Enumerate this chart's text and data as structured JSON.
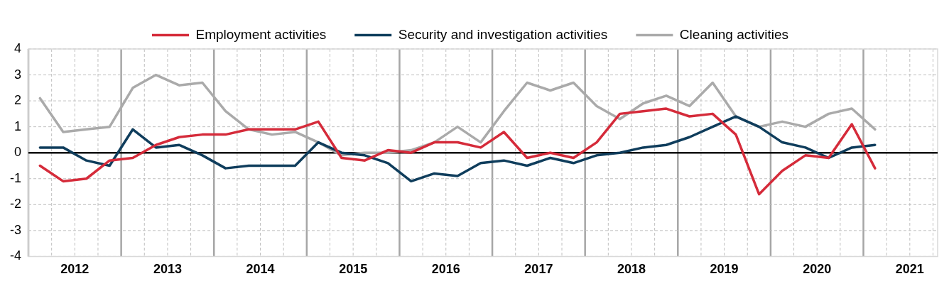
{
  "chart_data": {
    "type": "line",
    "x": [
      2012.125,
      2012.375,
      2012.625,
      2012.875,
      2013.125,
      2013.375,
      2013.625,
      2013.875,
      2014.125,
      2014.375,
      2014.625,
      2014.875,
      2015.125,
      2015.375,
      2015.625,
      2015.875,
      2016.125,
      2016.375,
      2016.625,
      2016.875,
      2017.125,
      2017.375,
      2017.625,
      2017.875,
      2018.125,
      2018.375,
      2018.625,
      2018.875,
      2019.125,
      2019.375,
      2019.625,
      2019.875,
      2020.125,
      2020.375,
      2020.625,
      2020.875,
      2021.125
    ],
    "series": [
      {
        "name": "Employment activities",
        "color": "#d52b3a",
        "values": [
          -0.5,
          -1.1,
          -1.0,
          -0.3,
          -0.2,
          0.3,
          0.6,
          0.7,
          0.7,
          0.9,
          0.9,
          0.9,
          1.2,
          -0.2,
          -0.3,
          0.1,
          0.0,
          0.4,
          0.4,
          0.2,
          0.8,
          -0.2,
          0.0,
          -0.2,
          0.4,
          1.5,
          1.6,
          1.7,
          1.4,
          1.5,
          0.7,
          -1.6,
          -0.7,
          -0.1,
          -0.2,
          1.1,
          -0.6
        ]
      },
      {
        "name": "Security and investigation activities",
        "color": "#0f3d5c",
        "values": [
          0.2,
          0.2,
          -0.3,
          -0.5,
          0.9,
          0.2,
          0.3,
          -0.1,
          -0.6,
          -0.5,
          -0.5,
          -0.5,
          0.4,
          0.0,
          -0.1,
          -0.4,
          -1.1,
          -0.8,
          -0.9,
          -0.4,
          -0.3,
          -0.5,
          -0.2,
          -0.4,
          -0.1,
          0.0,
          0.2,
          0.3,
          0.6,
          1.0,
          1.4,
          1.0,
          0.4,
          0.2,
          -0.2,
          0.2,
          0.3
        ]
      },
      {
        "name": "Cleaning activities",
        "color": "#aaaaaa",
        "values": [
          2.1,
          0.8,
          0.9,
          1.0,
          2.5,
          3.0,
          2.6,
          2.7,
          1.6,
          0.9,
          0.7,
          0.8,
          0.4,
          -0.1,
          0.0,
          0.0,
          0.1,
          0.4,
          1.0,
          0.4,
          1.6,
          2.7,
          2.4,
          2.7,
          1.8,
          1.3,
          1.9,
          2.2,
          1.8,
          2.7,
          1.4,
          1.0,
          1.2,
          1.0,
          1.5,
          1.7,
          0.9
        ]
      }
    ],
    "xlim": [
      2012,
      2021.8
    ],
    "xticks": [
      {
        "value": 2012,
        "label": null
      },
      {
        "value": 2012.25,
        "label": null
      },
      {
        "value": 2012.5,
        "label": "2012"
      },
      {
        "value": 2012.75,
        "label": null
      },
      {
        "value": 2013,
        "label": null
      },
      {
        "value": 2013.25,
        "label": null
      },
      {
        "value": 2013.5,
        "label": "2013"
      },
      {
        "value": 2013.75,
        "label": null
      },
      {
        "value": 2014,
        "label": null
      },
      {
        "value": 2014.25,
        "label": null
      },
      {
        "value": 2014.5,
        "label": "2014"
      },
      {
        "value": 2014.75,
        "label": null
      },
      {
        "value": 2015,
        "label": null
      },
      {
        "value": 2015.25,
        "label": null
      },
      {
        "value": 2015.5,
        "label": "2015"
      },
      {
        "value": 2015.75,
        "label": null
      },
      {
        "value": 2016,
        "label": null
      },
      {
        "value": 2016.25,
        "label": null
      },
      {
        "value": 2016.5,
        "label": "2016"
      },
      {
        "value": 2016.75,
        "label": null
      },
      {
        "value": 2017,
        "label": null
      },
      {
        "value": 2017.25,
        "label": null
      },
      {
        "value": 2017.5,
        "label": "2017"
      },
      {
        "value": 2017.75,
        "label": null
      },
      {
        "value": 2018,
        "label": null
      },
      {
        "value": 2018.25,
        "label": null
      },
      {
        "value": 2018.5,
        "label": "2018"
      },
      {
        "value": 2018.75,
        "label": null
      },
      {
        "value": 2019,
        "label": null
      },
      {
        "value": 2019.25,
        "label": null
      },
      {
        "value": 2019.5,
        "label": "2019"
      },
      {
        "value": 2019.75,
        "label": null
      },
      {
        "value": 2020,
        "label": null
      },
      {
        "value": 2020.25,
        "label": null
      },
      {
        "value": 2020.5,
        "label": "2020"
      },
      {
        "value": 2020.75,
        "label": null
      },
      {
        "value": 2021,
        "label": null
      },
      {
        "value": 2021.25,
        "label": null
      },
      {
        "value": 2021.5,
        "label": "2021"
      },
      {
        "value": 2021.75,
        "label": null
      }
    ],
    "ylim": [
      -4,
      4
    ],
    "yticks": [
      -4,
      -3,
      -2,
      -1,
      0,
      1,
      2,
      3,
      4
    ],
    "ref_lines": [
      {
        "axis": "y",
        "value": 0,
        "color": "#000000"
      }
    ],
    "grid": true,
    "legend": "top",
    "marker": "none",
    "line_style": "solid"
  }
}
